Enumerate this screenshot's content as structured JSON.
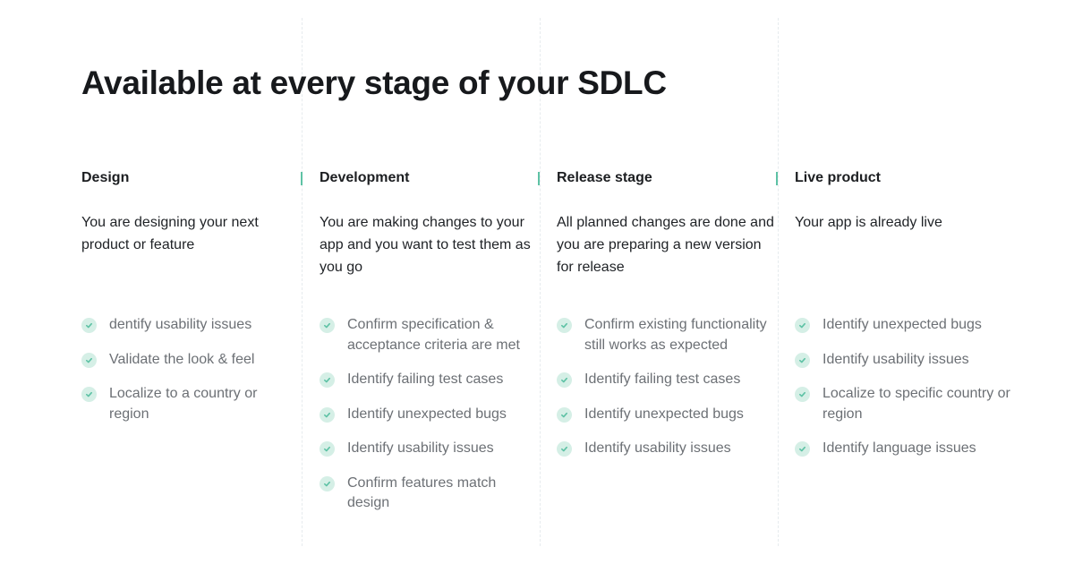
{
  "title": "Available at every stage of your SDLC",
  "accent_color": "#5ec2a5",
  "columns": [
    {
      "heading": "Design",
      "description": "You are designing your next product or feature",
      "items": [
        "dentify usability issues",
        "Validate the look & feel",
        "Localize to a country or region"
      ]
    },
    {
      "heading": "Development",
      "description": "You are making changes to your app and you want to test them as you go",
      "items": [
        "Confirm specification & acceptance criteria are met",
        "Identify failing test cases",
        "Identify unexpected bugs",
        "Identify usability issues",
        "Confirm features match design"
      ]
    },
    {
      "heading": "Release stage",
      "description": "All planned changes are done and you are preparing a new version for release",
      "items": [
        "Confirm existing functionality still works as expected",
        "Identify failing test cases",
        "Identify unexpected bugs",
        "Identify usability issues"
      ]
    },
    {
      "heading": "Live product",
      "description": "Your app is already live",
      "items": [
        "Identify unexpected bugs",
        "Identify usability issues",
        "Localize to specific country or region",
        "Identify language issues"
      ]
    }
  ]
}
